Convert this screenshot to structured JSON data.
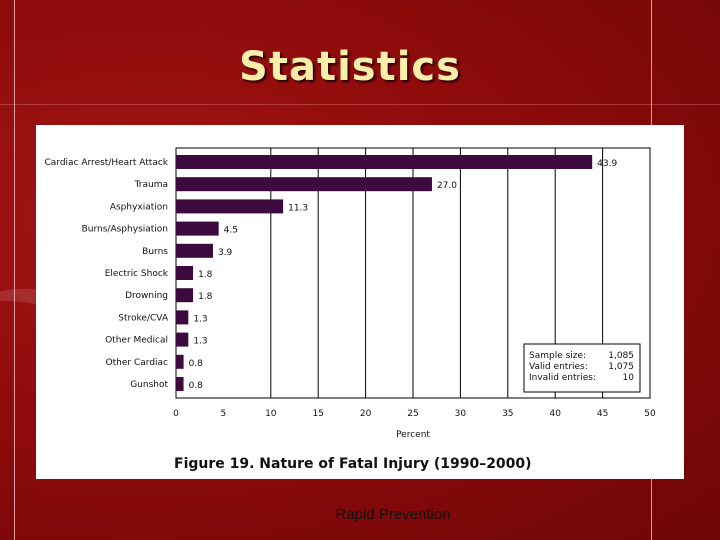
{
  "slide": {
    "title": "Statistics",
    "footer": "Rapid Prevention",
    "colors": {
      "background": "#8e0b0b",
      "title": "#fbeea8",
      "bar": "#3d0a3f"
    }
  },
  "chart_data": {
    "type": "bar",
    "orientation": "horizontal",
    "caption": "Figure 19.  Nature of Fatal Injury (1990–2000)",
    "xlabel": "Percent",
    "xlim": [
      0,
      50
    ],
    "xticks": [
      0,
      5,
      10,
      15,
      20,
      25,
      30,
      35,
      40,
      45,
      50
    ],
    "vertical_gridlines": [
      10,
      15,
      20,
      25,
      30,
      35,
      40,
      45
    ],
    "categories": [
      "Cardiac Arrest/Heart Attack",
      "Trauma",
      "Asphyxiation",
      "Burns/Asphysiation",
      "Burns",
      "Electric Shock",
      "Drowning",
      "Stroke/CVA",
      "Other Medical",
      "Other Cardiac",
      "Gunshot"
    ],
    "values": [
      43.9,
      27.0,
      11.3,
      4.5,
      3.9,
      1.8,
      1.8,
      1.3,
      1.3,
      0.8,
      0.8
    ],
    "value_labels": [
      "43.9",
      "27.0",
      "11.3",
      "4.5",
      "3.9",
      "1.8",
      "1.8",
      "1.3",
      "1.3",
      "0.8",
      "0.8"
    ],
    "stats_box": [
      {
        "label": "Sample size:",
        "value": "1,085"
      },
      {
        "label": "Valid entries:",
        "value": "1,075"
      },
      {
        "label": "Invalid entries:",
        "value": "10"
      }
    ]
  }
}
